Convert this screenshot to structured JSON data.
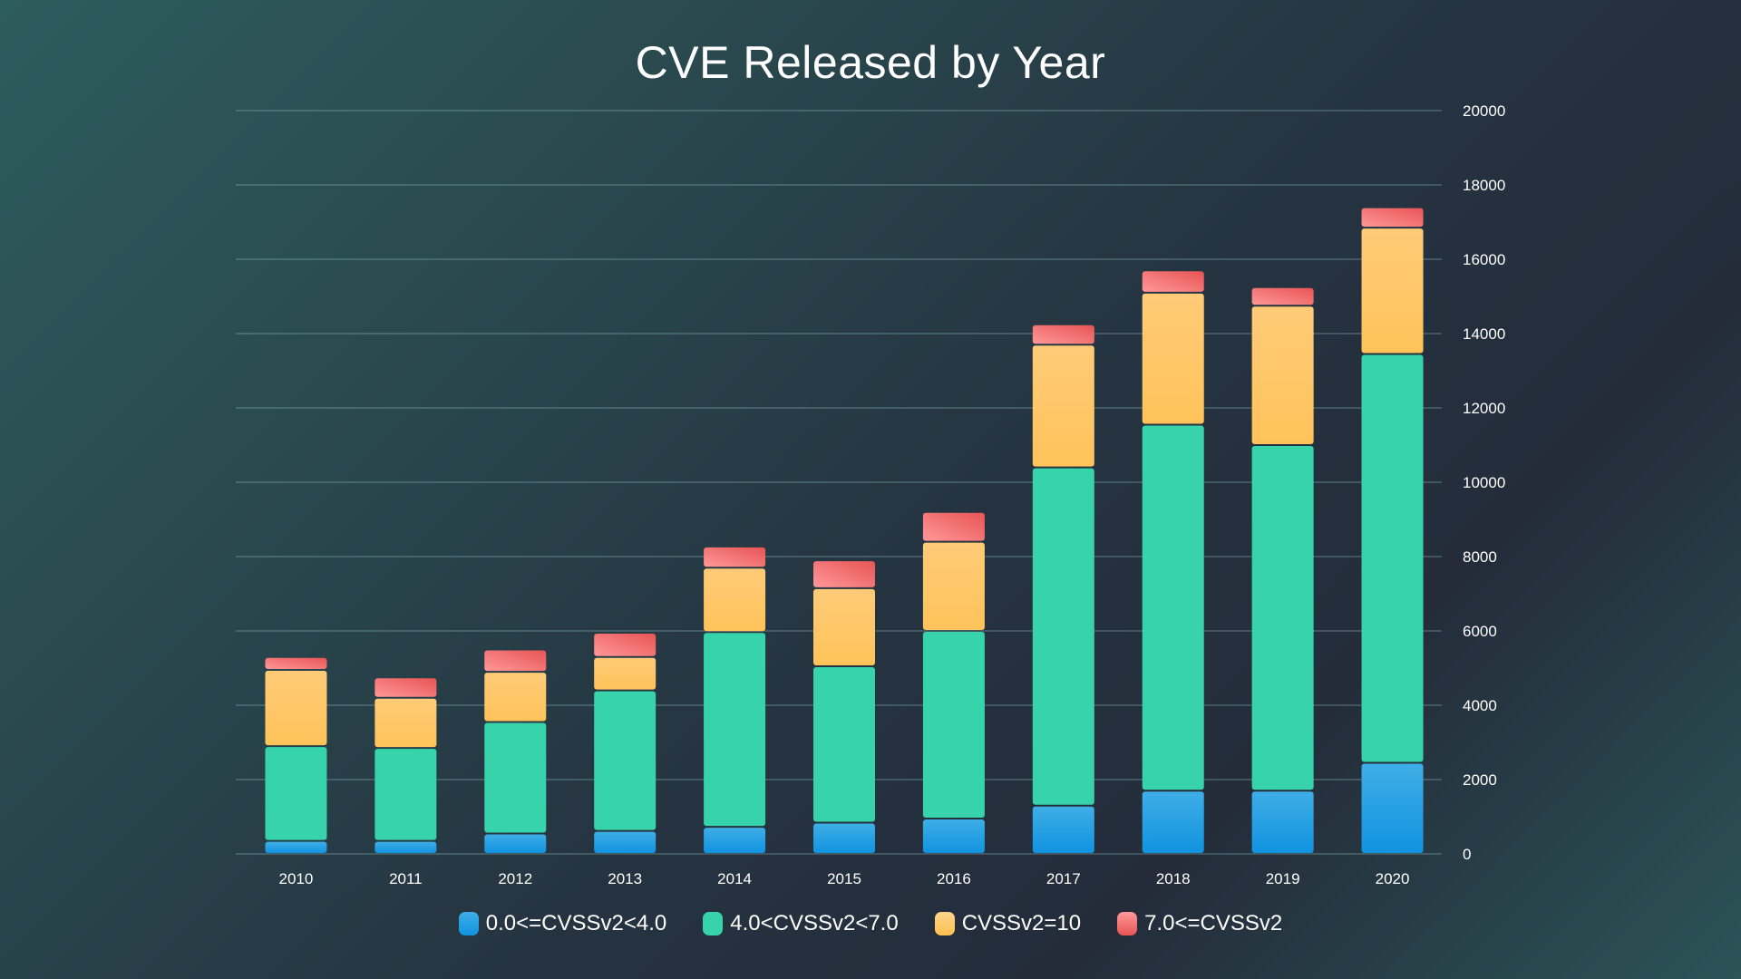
{
  "chart_data": {
    "type": "bar",
    "stacked": true,
    "title": "CVE Released by Year",
    "xlabel": "",
    "ylabel": "",
    "ylim": [
      0,
      20000
    ],
    "yticks": [
      0,
      2000,
      4000,
      6000,
      8000,
      10000,
      12000,
      14000,
      16000,
      18000,
      20000
    ],
    "yaxis_position": "right",
    "grid": true,
    "legend_position": "bottom",
    "categories": [
      "2010",
      "2011",
      "2012",
      "2013",
      "2014",
      "2015",
      "2016",
      "2017",
      "2018",
      "2019",
      "2020"
    ],
    "series": [
      {
        "name": "0.0<=CVSSv2<4.0",
        "color": "#2aa3e8",
        "values": [
          350,
          350,
          550,
          620,
          730,
          840,
          950,
          1300,
          1700,
          1700,
          2450
        ]
      },
      {
        "name": "4.0<CVSSv2<7.0",
        "color": "#37d3aa",
        "values": [
          2550,
          2500,
          3000,
          3780,
          5240,
          4210,
          5050,
          9100,
          9850,
          9300,
          11000
        ]
      },
      {
        "name": "CVSSv2=10",
        "color": "#ffc75f",
        "values": [
          2050,
          1350,
          1350,
          900,
          1730,
          2100,
          2400,
          3300,
          3550,
          3750,
          3400
        ]
      },
      {
        "name": "7.0<=CVSSv2",
        "color": "#f0696b",
        "values": [
          350,
          550,
          600,
          650,
          570,
          750,
          800,
          550,
          600,
          500,
          550
        ]
      }
    ]
  }
}
